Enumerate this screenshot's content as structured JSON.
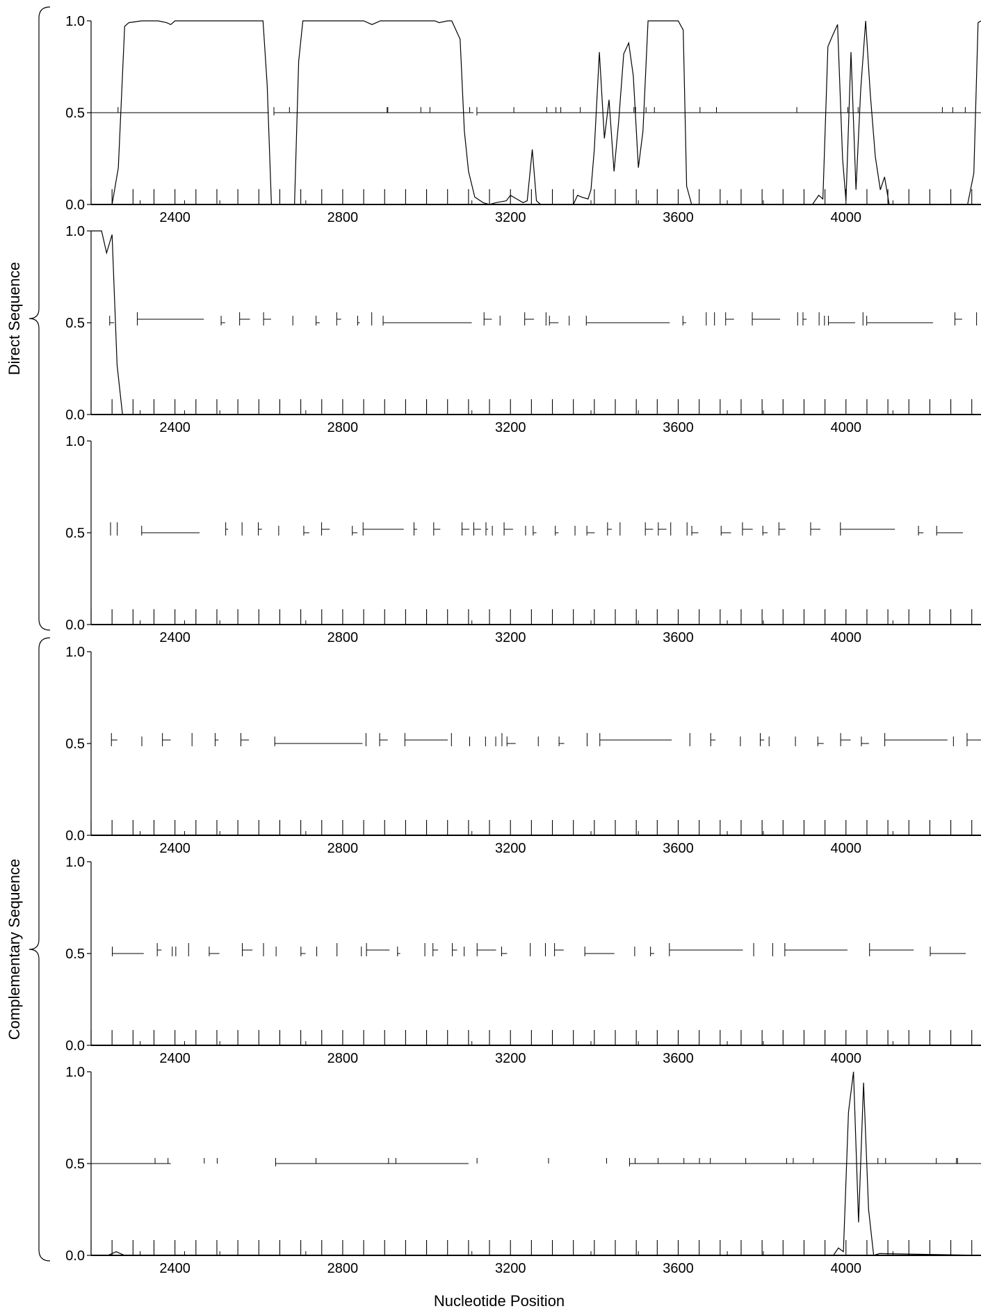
{
  "chart_data": {
    "type": "line",
    "xlabel": "Nucleotide Position",
    "xlim": [
      2200,
      4322
    ],
    "ylim": [
      0,
      1
    ],
    "yticks": [
      "0.0",
      "0.5",
      "1.0"
    ],
    "xticks": [
      "2400",
      "2800",
      "3200",
      "3600",
      "4000"
    ],
    "groups": [
      {
        "label": "Direct Sequence",
        "panels": [
          0,
          1,
          2
        ]
      },
      {
        "label": "Complementary Sequence",
        "panels": [
          3,
          4,
          5
        ]
      }
    ],
    "panels": [
      {
        "frame": 1,
        "curve": [
          [
            2250,
            0
          ],
          [
            2265,
            0.2
          ],
          [
            2280,
            0.97
          ],
          [
            2290,
            0.99
          ],
          [
            2320,
            1.0
          ],
          [
            2360,
            1.0
          ],
          [
            2380,
            0.99
          ],
          [
            2390,
            0.98
          ],
          [
            2400,
            1.0
          ],
          [
            2450,
            1.0
          ],
          [
            2500,
            1.0
          ],
          [
            2560,
            1.0
          ],
          [
            2610,
            1.0
          ],
          [
            2620,
            0.65
          ],
          [
            2630,
            0
          ],
          [
            2685,
            0
          ],
          [
            2695,
            0.78
          ],
          [
            2705,
            1.0
          ],
          [
            2760,
            1.0
          ],
          [
            2800,
            1.0
          ],
          [
            2850,
            1.0
          ],
          [
            2870,
            0.98
          ],
          [
            2890,
            1.0
          ],
          [
            2950,
            1.0
          ],
          [
            3000,
            1.0
          ],
          [
            3020,
            1.0
          ],
          [
            3030,
            0.99
          ],
          [
            3050,
            1.0
          ],
          [
            3060,
            1.0
          ],
          [
            3080,
            0.9
          ],
          [
            3090,
            0.4
          ],
          [
            3100,
            0.18
          ],
          [
            3115,
            0.04
          ],
          [
            3135,
            0.01
          ],
          [
            3150,
            0
          ],
          [
            3165,
            0.01
          ],
          [
            3190,
            0.02
          ],
          [
            3200,
            0.05
          ],
          [
            3215,
            0.03
          ],
          [
            3230,
            0.01
          ],
          [
            3240,
            0.02
          ],
          [
            3252,
            0.3
          ],
          [
            3262,
            0.02
          ],
          [
            3272,
            0
          ],
          [
            3330,
            0
          ],
          [
            3350,
            0
          ],
          [
            3360,
            0.05
          ],
          [
            3370,
            0.04
          ],
          [
            3385,
            0.03
          ],
          [
            3392,
            0.08
          ],
          [
            3400,
            0.3
          ],
          [
            3412,
            0.83
          ],
          [
            3424,
            0.36
          ],
          [
            3435,
            0.57
          ],
          [
            3447,
            0.18
          ],
          [
            3458,
            0.45
          ],
          [
            3470,
            0.82
          ],
          [
            3482,
            0.88
          ],
          [
            3493,
            0.7
          ],
          [
            3505,
            0.2
          ],
          [
            3516,
            0.4
          ],
          [
            3528,
            1.0
          ],
          [
            3540,
            1.0
          ],
          [
            3580,
            1.0
          ],
          [
            3600,
            1.0
          ],
          [
            3612,
            0.95
          ],
          [
            3620,
            0.1
          ],
          [
            3632,
            0
          ],
          [
            3920,
            0
          ],
          [
            3935,
            0.05
          ],
          [
            3945,
            0.03
          ],
          [
            3957,
            0.86
          ],
          [
            3968,
            0.92
          ],
          [
            3980,
            0.98
          ],
          [
            3992,
            0.25
          ],
          [
            4000,
            0.02
          ],
          [
            4012,
            0.83
          ],
          [
            4024,
            0.08
          ],
          [
            4035,
            0.62
          ],
          [
            4047,
            1.0
          ],
          [
            4058,
            0.6
          ],
          [
            4070,
            0.26
          ],
          [
            4082,
            0.08
          ],
          [
            4092,
            0.15
          ],
          [
            4103,
            0
          ],
          [
            4290,
            0
          ],
          [
            4305,
            0.17
          ],
          [
            4315,
            0.99
          ],
          [
            4322,
            1.0
          ]
        ]
      },
      {
        "frame": 2,
        "curve": [
          [
            2200,
            1.0
          ],
          [
            2225,
            1.0
          ],
          [
            2237,
            0.88
          ],
          [
            2250,
            0.98
          ],
          [
            2262,
            0.27
          ],
          [
            2275,
            0
          ],
          [
            2322,
            0
          ]
        ]
      },
      {
        "frame": 3,
        "curve": []
      },
      {
        "frame": -1,
        "curve": []
      },
      {
        "frame": -2,
        "curve": []
      },
      {
        "frame": -3,
        "curve": [
          [
            2200,
            0
          ],
          [
            2240,
            0
          ],
          [
            2250,
            0.01
          ],
          [
            2260,
            0.02
          ],
          [
            2270,
            0.01
          ],
          [
            2280,
            0
          ],
          [
            3950,
            0
          ],
          [
            3970,
            0
          ],
          [
            3982,
            0.04
          ],
          [
            3994,
            0.02
          ],
          [
            4006,
            0.78
          ],
          [
            4018,
            1.0
          ],
          [
            4030,
            0.18
          ],
          [
            4042,
            0.94
          ],
          [
            4054,
            0.25
          ],
          [
            4066,
            0
          ],
          [
            4080,
            0.01
          ],
          [
            4322,
            0
          ]
        ]
      }
    ]
  }
}
